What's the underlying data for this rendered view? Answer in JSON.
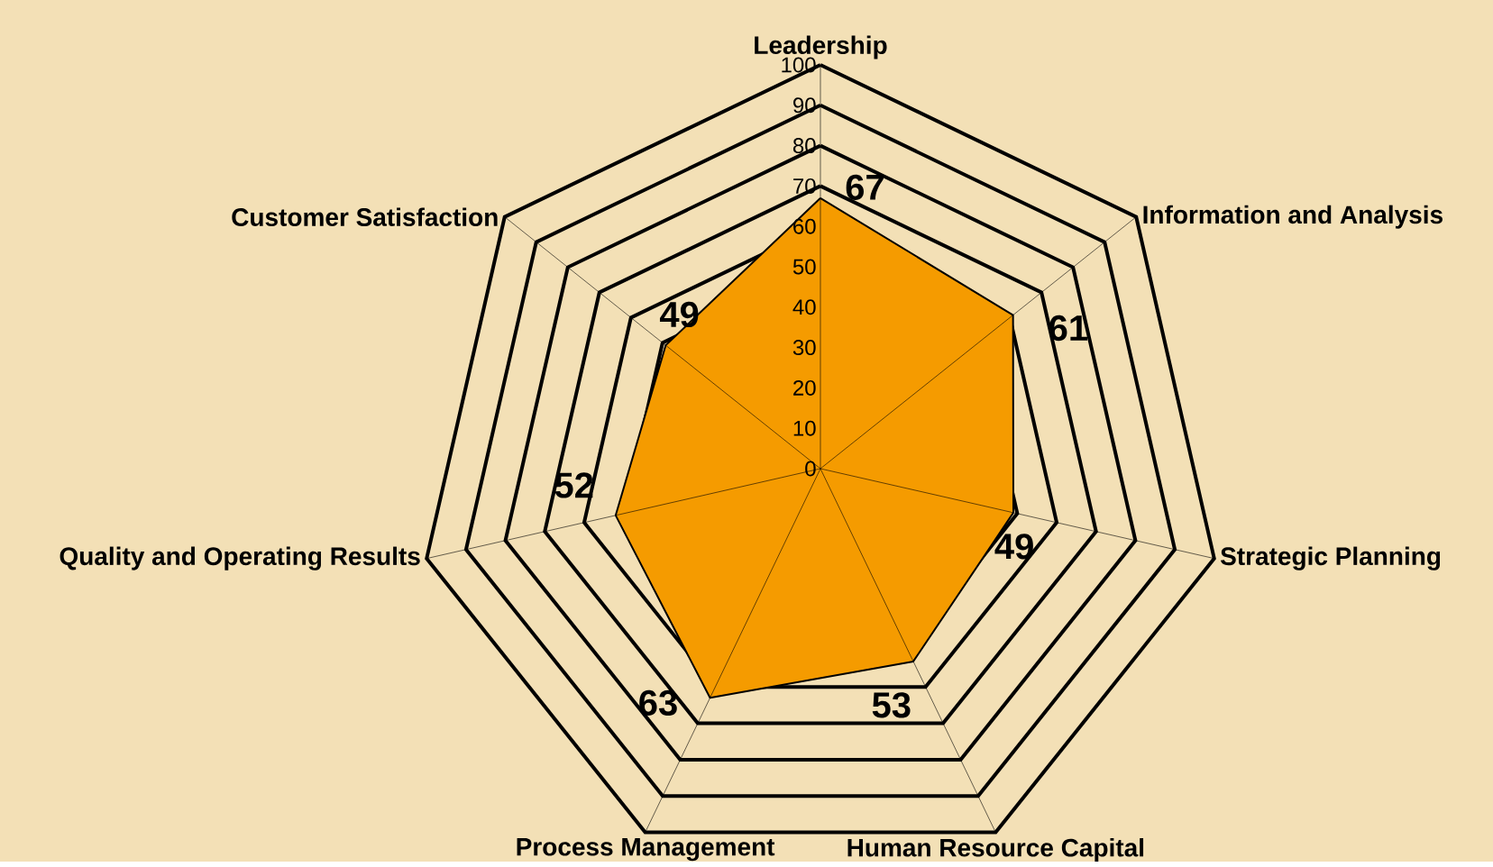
{
  "chart_data": {
    "type": "radar",
    "categories": [
      "Leadership",
      "Information and Analysis",
      "Strategic Planning",
      "Human Resource Capital",
      "Process Management",
      "Quality and Operating Results",
      "Customer Satisfaction"
    ],
    "series": [
      {
        "color": "#f59b00",
        "values": [
          67,
          61,
          49,
          53,
          63,
          52,
          49
        ]
      }
    ],
    "ylim": [
      0,
      100
    ],
    "yticks": [
      0,
      10,
      20,
      30,
      40,
      50,
      60,
      70,
      80,
      90,
      100
    ],
    "grid": true,
    "data_labels": true
  }
}
